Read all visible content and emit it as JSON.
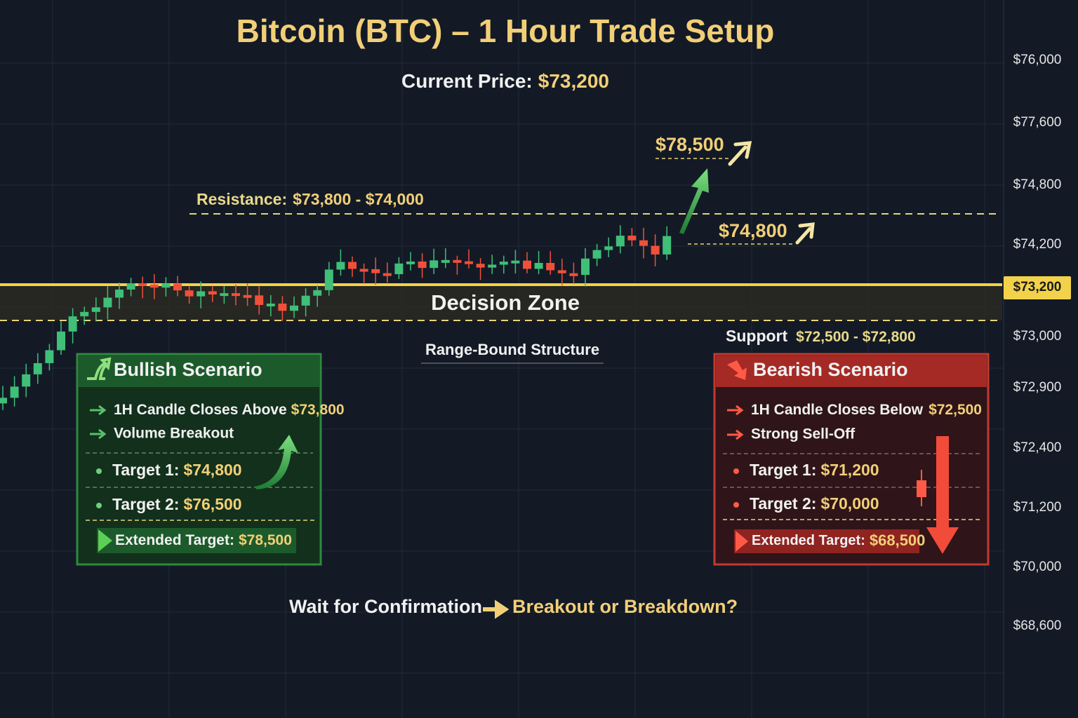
{
  "title": "Bitcoin (BTC) – 1 Hour Trade Setup",
  "current_price": {
    "label": "Current Price:",
    "value": "$73,200"
  },
  "price_axis": [
    "$76,000",
    "$77,600",
    "$74,800",
    "$74,200",
    "$73,200",
    "$73,000",
    "$72,900",
    "$72,400",
    "$71,200",
    "$70,000",
    "$68,600"
  ],
  "annotations": {
    "target_high": "$78,500",
    "target_mid": "$74,800",
    "resistance": {
      "label": "Resistance:",
      "value": "$73,800 - $74,000"
    },
    "support": {
      "label": "Support",
      "value": "$72,500 - $72,800"
    },
    "decision_zone": "Decision Zone",
    "range": "Range-Bound Structure"
  },
  "bullish": {
    "title": "Bullish Scenario",
    "conditions": [
      {
        "text": "1H Candle Closes Above",
        "value": "$73,800"
      },
      {
        "text": "Volume Breakout"
      }
    ],
    "targets": [
      {
        "label": "Target 1:",
        "value": "$74,800"
      },
      {
        "label": "Target 2:",
        "value": "$76,500"
      }
    ],
    "extended": {
      "label": "Extended Target:",
      "value": "$78,500"
    }
  },
  "bearish": {
    "title": "Bearish Scenario",
    "conditions": [
      {
        "text": "1H Candle Closes Below",
        "value": "$72,500"
      },
      {
        "text": "Strong Sell-Off"
      }
    ],
    "targets": [
      {
        "label": "Target 1:",
        "value": "$71,200"
      },
      {
        "label": "Target 2:",
        "value": "$70,000"
      }
    ],
    "extended": {
      "label": "Extended Target:",
      "value": "$68,500"
    }
  },
  "footer": {
    "left": "Wait for Confirmation",
    "right": "Breakout or Breakdown?"
  }
}
